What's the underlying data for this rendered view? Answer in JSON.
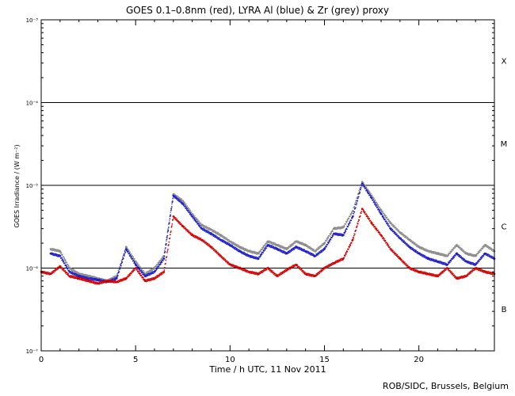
{
  "chart_data": {
    "type": "scatter",
    "title": "GOES 0.1–0.8nm (red), LYRA Al (blue) & Zr (grey) proxy",
    "xlabel": "Time / h UTC, 11 Nov 2011",
    "ylabel": "GOES Irradiance / (W m⁻²)",
    "xlim": [
      0,
      24
    ],
    "ylim": [
      1e-07,
      0.001
    ],
    "y_scale": "log",
    "x_ticks": [
      0,
      5,
      10,
      15,
      20
    ],
    "y_tick_labels": [
      "10⁻⁷",
      "10⁻⁶",
      "10⁻⁵",
      "10⁻⁴",
      "10⁻³"
    ],
    "y_tick_values": [
      1e-07,
      1e-06,
      1e-05,
      0.0001,
      0.001
    ],
    "flare_class_lines": [
      1e-06,
      1e-05,
      0.0001
    ],
    "flare_classes": [
      {
        "label": "B",
        "value": 3.2e-07
      },
      {
        "label": "C",
        "value": 3.2e-06
      },
      {
        "label": "M",
        "value": 3.2e-05
      },
      {
        "label": "X",
        "value": 0.00032
      }
    ],
    "series": [
      {
        "color": "#d40000",
        "x": [
          0,
          0.5,
          1.0,
          1.5,
          2.0,
          2.5,
          3.0,
          3.5,
          4.0,
          4.5,
          5.0,
          5.5,
          6.0,
          6.5,
          7.0,
          7.5,
          8.0,
          8.5,
          9.0,
          9.5,
          10.0,
          10.5,
          11.0,
          11.5,
          12.0,
          12.5,
          13.0,
          13.5,
          14.0,
          14.5,
          15.0,
          15.5,
          16.0,
          16.5,
          17.0,
          17.5,
          18.0,
          18.5,
          19.0,
          19.5,
          20.0,
          20.5,
          21.0,
          21.5,
          22.0,
          22.5,
          23.0,
          23.5,
          24.0
        ],
        "y": [
          9e-07,
          8.5e-07,
          1.05e-06,
          8e-07,
          7.5e-07,
          7e-07,
          6.5e-07,
          7e-07,
          6.8e-07,
          7.5e-07,
          1e-06,
          7e-07,
          7.5e-07,
          9e-07,
          4.2e-06,
          3.2e-06,
          2.5e-06,
          2.2e-06,
          1.8e-06,
          1.4e-06,
          1.1e-06,
          1e-06,
          9e-07,
          8.5e-07,
          1e-06,
          8e-07,
          9.5e-07,
          1.1e-06,
          8.5e-07,
          8e-07,
          1e-06,
          1.15e-06,
          1.3e-06,
          2.2e-06,
          5.2e-06,
          3.5e-06,
          2.5e-06,
          1.7e-06,
          1.3e-06,
          1e-06,
          9e-07,
          8.5e-07,
          8e-07,
          1e-06,
          7.5e-07,
          8e-07,
          1e-06,
          9e-07,
          8.5e-07
        ]
      },
      {
        "color": "#1e1ec8",
        "x": [
          0.5,
          1.0,
          1.5,
          2.0,
          2.5,
          3.0,
          3.5,
          4.0,
          4.5,
          5.0,
          5.5,
          6.0,
          6.5,
          7.0,
          7.5,
          8.0,
          8.5,
          9.0,
          9.5,
          10.0,
          10.5,
          11.0,
          11.5,
          12.0,
          12.5,
          13.0,
          13.5,
          14.0,
          14.5,
          15.0,
          15.5,
          16.0,
          16.5,
          17.0,
          17.5,
          18.0,
          18.5,
          19.0,
          19.5,
          20.0,
          20.5,
          21.0,
          21.5,
          22.0,
          22.5,
          23.0,
          23.5,
          24.0
        ],
        "y": [
          1.5e-06,
          1.4e-06,
          9e-07,
          8e-07,
          7.5e-07,
          7.2e-07,
          6.8e-07,
          7.5e-07,
          1.7e-06,
          1.1e-06,
          8e-07,
          9e-07,
          1.3e-06,
          7.5e-06,
          6e-06,
          4.2e-06,
          3e-06,
          2.6e-06,
          2.2e-06,
          1.9e-06,
          1.6e-06,
          1.4e-06,
          1.3e-06,
          1.9e-06,
          1.7e-06,
          1.5e-06,
          1.8e-06,
          1.6e-06,
          1.4e-06,
          1.7e-06,
          2.6e-06,
          2.5e-06,
          4.2e-06,
          1.05e-05,
          7e-06,
          4.5e-06,
          3e-06,
          2.3e-06,
          1.8e-06,
          1.5e-06,
          1.3e-06,
          1.2e-06,
          1.1e-06,
          1.5e-06,
          1.2e-06,
          1.1e-06,
          1.5e-06,
          1.3e-06
        ]
      },
      {
        "color": "#8a8a8a",
        "x": [
          0.5,
          1.0,
          1.5,
          2.0,
          2.5,
          3.0,
          3.5,
          4.0,
          4.5,
          5.0,
          5.5,
          6.0,
          6.5,
          7.0,
          7.5,
          8.0,
          8.5,
          9.0,
          9.5,
          10.0,
          10.5,
          11.0,
          11.5,
          12.0,
          12.5,
          13.0,
          13.5,
          14.0,
          14.5,
          15.0,
          15.5,
          16.0,
          16.5,
          17.0,
          17.5,
          18.0,
          18.5,
          19.0,
          19.5,
          20.0,
          20.5,
          21.0,
          21.5,
          22.0,
          22.5,
          23.0,
          23.5,
          24.0
        ],
        "y": [
          1.7e-06,
          1.6e-06,
          1e-06,
          8.5e-07,
          8e-07,
          7.5e-07,
          7e-07,
          8e-07,
          1.8e-06,
          1.2e-06,
          8.5e-07,
          1e-06,
          1.4e-06,
          7.8e-06,
          6.5e-06,
          4.5e-06,
          3.3e-06,
          2.9e-06,
          2.5e-06,
          2.1e-06,
          1.8e-06,
          1.6e-06,
          1.5e-06,
          2.1e-06,
          1.9e-06,
          1.7e-06,
          2.1e-06,
          1.9e-06,
          1.6e-06,
          2e-06,
          3e-06,
          3.1e-06,
          4.9e-06,
          1.1e-05,
          7.5e-06,
          5e-06,
          3.5e-06,
          2.7e-06,
          2.2e-06,
          1.8e-06,
          1.6e-06,
          1.5e-06,
          1.4e-06,
          1.9e-06,
          1.5e-06,
          1.4e-06,
          1.9e-06,
          1.6e-06
        ]
      }
    ]
  },
  "credit": "ROB/SIDC, Brussels, Belgium"
}
